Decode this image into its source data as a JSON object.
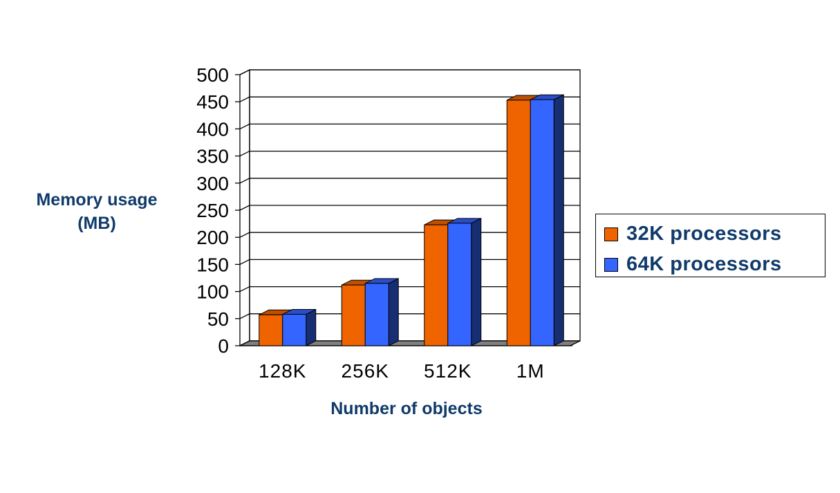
{
  "chart_data": {
    "type": "bar",
    "title": "",
    "xlabel": "Number of objects",
    "ylabel_lines": [
      "Memory usage",
      "(MB)"
    ],
    "categories": [
      "128K",
      "256K",
      "512K",
      "1M"
    ],
    "series": [
      {
        "name": "32K processors",
        "values": [
          57,
          112,
          223,
          453
        ],
        "color": "#f06400",
        "top_color": "#c05000"
      },
      {
        "name": "64K processors",
        "values": [
          58,
          115,
          226,
          454
        ],
        "color": "#3466ff",
        "top_color": "#2a4ec8"
      }
    ],
    "ylim": [
      0,
      500
    ],
    "yticks": [
      0,
      50,
      100,
      150,
      200,
      250,
      300,
      350,
      400,
      450,
      500
    ],
    "grid": true,
    "legend_position": "right",
    "style_3d": true
  }
}
